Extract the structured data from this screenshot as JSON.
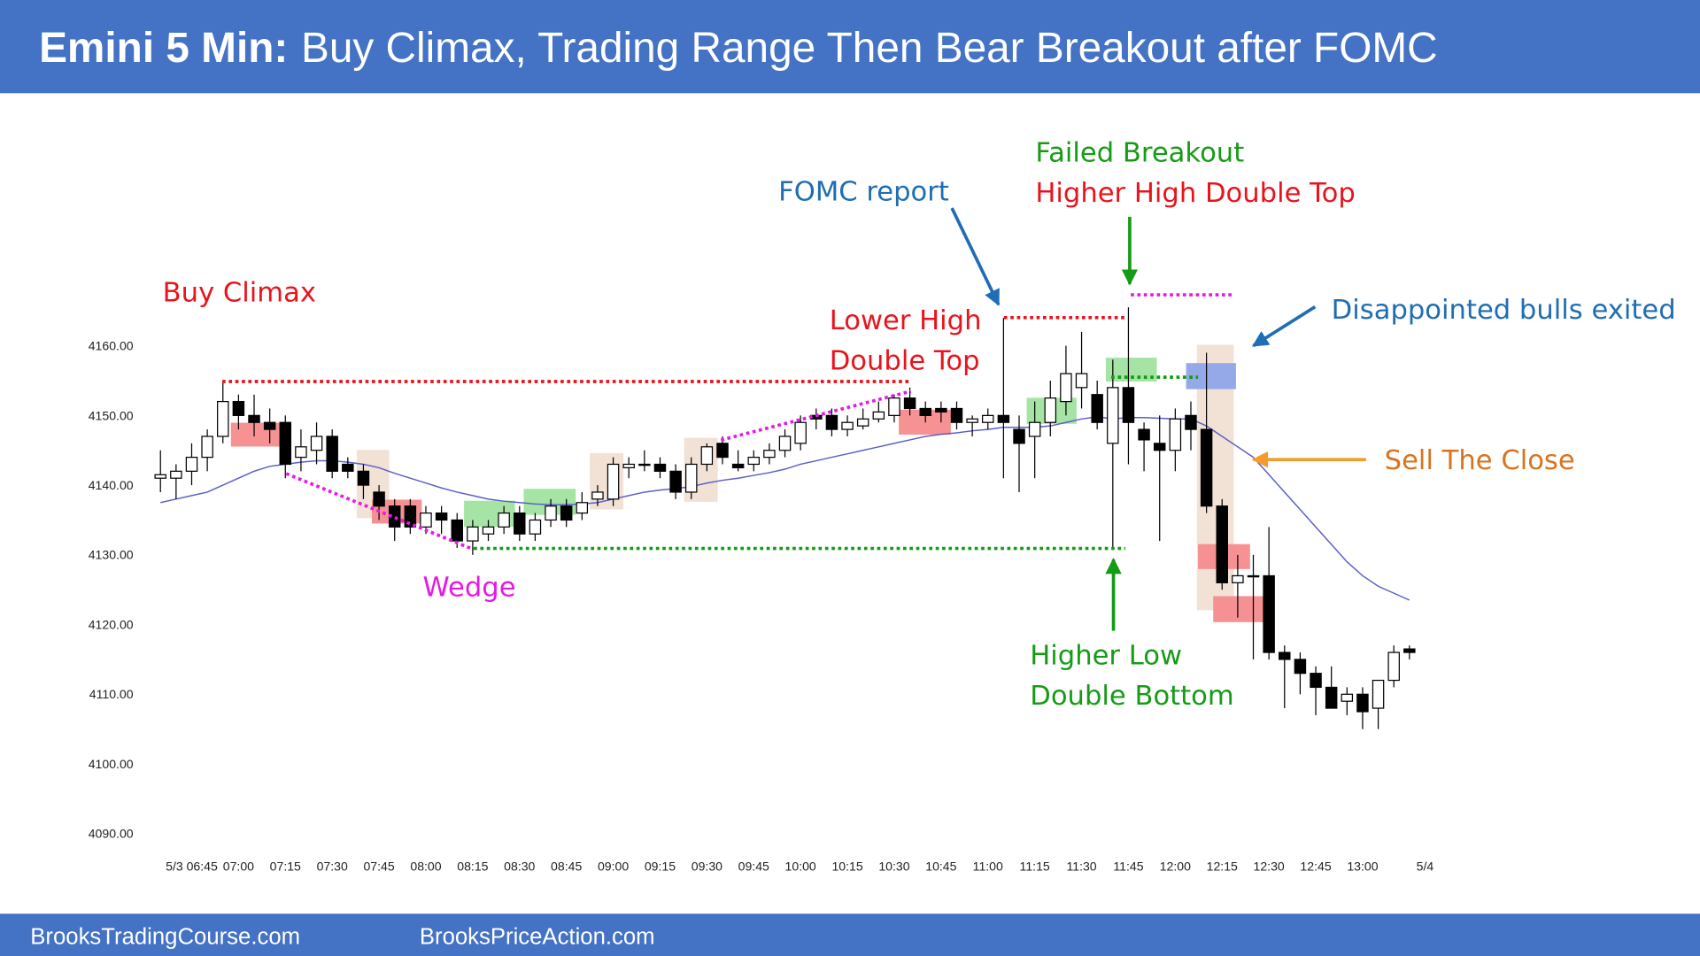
{
  "chart_data": {
    "type": "candlestick",
    "title": "Emini 5 Min:",
    "subtitle": "Buy Climax, Trading Range Then Bear Breakout after FOMC",
    "x": [
      null,
      null,
      "5/3 06:45",
      null,
      null,
      "07:00",
      null,
      null,
      "07:15",
      null,
      null,
      "07:30",
      null,
      null,
      "07:45",
      null,
      null,
      "08:00",
      null,
      null,
      "08:15",
      null,
      null,
      "08:30",
      null,
      null,
      "08:45",
      null,
      null,
      "09:00",
      null,
      null,
      "09:15",
      null,
      null,
      "09:30",
      null,
      null,
      "09:45",
      null,
      null,
      "10:00",
      null,
      null,
      "10:15",
      null,
      null,
      "10:30",
      null,
      null,
      "10:45",
      null,
      null,
      "11:00",
      null,
      null,
      "11:15",
      null,
      null,
      "11:30",
      null,
      null,
      "11:45",
      null,
      null,
      "12:00",
      null,
      null,
      "12:15",
      null,
      null,
      "12:30",
      null,
      null,
      "12:45",
      null,
      null,
      "13:00",
      null,
      null,
      null,
      "5/4"
    ],
    "open": [
      4141,
      4141,
      4142,
      4144,
      4147,
      4152,
      4150,
      4149,
      4149,
      4144,
      4145,
      4147,
      4143,
      4142,
      4139,
      4137,
      4137,
      4134,
      4136,
      4135,
      4132,
      4133,
      4134,
      4136,
      4133,
      4135,
      4137,
      4136,
      4138,
      4138,
      4142.5,
      4143,
      4143,
      4142,
      4139,
      4143,
      4146,
      4143,
      4143,
      4144,
      4145,
      4146,
      4150,
      4150,
      4148,
      4148.5,
      4149.5,
      4150,
      4152.5,
      4151,
      4151,
      4151,
      4149,
      4149,
      4150,
      4148,
      4147,
      4149,
      4152,
      4154,
      4153,
      4146,
      4154,
      4148,
      4146,
      4145,
      4150,
      4148,
      4137,
      4126,
      4127,
      4127,
      4116,
      4115,
      4113,
      4111,
      4109,
      4110,
      4108,
      4112,
      4116.5,
      null
    ],
    "high": [
      4145,
      4143,
      4146,
      4148,
      4155,
      4153,
      4153,
      4151,
      4150,
      4148,
      4149,
      4148,
      4144,
      4143,
      4140,
      4138,
      4138,
      4137,
      4137,
      4136,
      4135,
      4135,
      4137,
      4137,
      4136,
      4138,
      4138,
      4139,
      4140,
      4144,
      4144,
      4145,
      4144,
      4143,
      4144,
      4146,
      4147,
      4145,
      4145,
      4146,
      4148,
      4150,
      4151,
      4151,
      4150,
      4151,
      4152,
      4153,
      4154,
      4152,
      4152,
      4152,
      4150,
      4151,
      4164,
      4150,
      4152,
      4155,
      4160,
      4162,
      4155,
      4158,
      4165.5,
      4149,
      4150,
      4151,
      4152,
      4159,
      4138,
      4130,
      4130,
      4134,
      4117,
      4116,
      4114,
      4114,
      4111,
      4111,
      4112,
      4117,
      4117,
      null
    ],
    "low": [
      4139,
      4138,
      4140,
      4142,
      4146,
      4148,
      4147,
      4146,
      4141,
      4142,
      4143,
      4141,
      4141,
      4138,
      4135,
      4132,
      4133,
      4133,
      4133,
      4131,
      4130,
      4132,
      4133,
      4132,
      4132,
      4134,
      4134,
      4135,
      4137,
      4137,
      4141,
      4142,
      4141,
      4138,
      4138,
      4142,
      4143,
      4142,
      4142,
      4143,
      4144,
      4145,
      4148,
      4147,
      4147,
      4148,
      4149,
      4149,
      4150,
      4149,
      4149,
      4148,
      4147,
      4148,
      4141,
      4139,
      4141,
      4147,
      4150,
      4151,
      4148,
      4131,
      4143,
      4142,
      4132,
      4142,
      4145,
      4136,
      4125,
      4121,
      4115,
      4115,
      4108,
      4110,
      4107,
      4108,
      4107,
      4105,
      4105,
      4111,
      4115,
      null
    ],
    "close": [
      4141.5,
      4142,
      4144,
      4147,
      4152,
      4150,
      4149,
      4148,
      4143,
      4145.5,
      4147,
      4142,
      4142,
      4140,
      4137,
      4134,
      4134,
      4136,
      4135,
      4132,
      4134,
      4134,
      4136,
      4133,
      4135,
      4137,
      4135,
      4137.5,
      4139,
      4143,
      4143,
      4143,
      4142,
      4139,
      4143,
      4145.5,
      4144,
      4142.5,
      4144,
      4145,
      4147,
      4149,
      4149.5,
      4148,
      4149,
      4149.5,
      4150.5,
      4152.5,
      4151,
      4150,
      4150.5,
      4149,
      4149.5,
      4150,
      4149,
      4146,
      4149,
      4152.5,
      4156,
      4156,
      4149,
      4154,
      4149,
      4146.5,
      4145,
      4149.5,
      4148,
      4137,
      4126,
      4127,
      4127,
      4116,
      4115,
      4113,
      4111,
      4108,
      4110,
      4107.5,
      4112,
      4116,
      4116,
      null
    ],
    "moving_average": {
      "color": "#5b5fc7",
      "values": [
        4137.5,
        4138,
        4138.5,
        4139,
        4140,
        4141,
        4142,
        4142.7,
        4143,
        4143.3,
        4143.5,
        4143.5,
        4143.3,
        4143,
        4142.5,
        4141.7,
        4141,
        4140.3,
        4139.6,
        4139,
        4138.5,
        4138,
        4137.7,
        4137.5,
        4137.3,
        4137.2,
        4137.2,
        4137.3,
        4137.5,
        4138,
        4138.5,
        4139,
        4139.3,
        4139.5,
        4139.8,
        4140.3,
        4140.7,
        4141,
        4141.4,
        4141.8,
        4142.3,
        4143,
        4143.5,
        4144,
        4144.5,
        4145,
        4145.5,
        4146,
        4146.5,
        4147,
        4147.3,
        4147.5,
        4147.8,
        4148,
        4148.3,
        4148.3,
        4148.3,
        4148.5,
        4149,
        4149.5,
        4149.8,
        4149.5,
        4149.7,
        4149.7,
        4149.6,
        4149.5,
        4149.5,
        4148.5,
        4147,
        4145.5,
        4144,
        4141.5,
        4139,
        4136.5,
        4134,
        4131.5,
        4129,
        4127,
        4125.5,
        4124.5,
        4123.5,
        null
      ]
    },
    "up_color": "#ffffff",
    "down_color": "#000000",
    "ylim": [
      4087.5,
      4193
    ],
    "yticks": [
      {
        "value": 4090,
        "label": "4090.00"
      },
      {
        "value": 4100,
        "label": "4100.00"
      },
      {
        "value": 4110,
        "label": "4110.00"
      },
      {
        "value": 4120,
        "label": "4120.00"
      },
      {
        "value": 4130,
        "label": "4130.00"
      },
      {
        "value": 4140,
        "label": "4140.00"
      },
      {
        "value": 4150,
        "label": "4150.00"
      },
      {
        "value": 4160,
        "label": "4160.00"
      }
    ],
    "grid": false,
    "annotations": [
      {
        "text": "Buy Climax",
        "color": "#e8141c"
      },
      {
        "text": "Wedge",
        "color": "#e619e6"
      },
      {
        "text": "Lower High",
        "color": "#e8141c"
      },
      {
        "text": "Double Top",
        "color": "#e8141c"
      },
      {
        "text": "FOMC report",
        "color": "#1f6db4"
      },
      {
        "text": "Failed Breakout",
        "color": "#169b16"
      },
      {
        "text": "Higher High Double Top",
        "color": "#e8141c"
      },
      {
        "text": "Disappointed bulls exited",
        "color": "#1f6db4"
      },
      {
        "text": "Sell The Close",
        "color": "#d87420"
      },
      {
        "text": "Higher Low",
        "color": "#169b16"
      },
      {
        "text": "Double Bottom",
        "color": "#169b16"
      }
    ]
  },
  "footer": [
    "BrooksTradingCourse.com",
    "BrooksPriceAction.com"
  ]
}
